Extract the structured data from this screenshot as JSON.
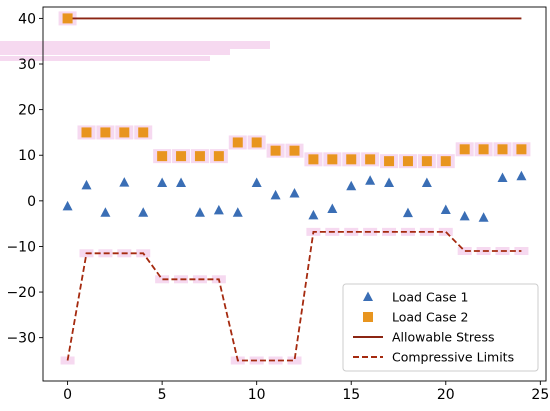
{
  "chart_data": {
    "type": "scatter",
    "title": "",
    "xlabel": "",
    "ylabel": "",
    "xlim": [
      -1.3,
      25.3
    ],
    "ylim": [
      -39.5,
      42.5
    ],
    "grid": false,
    "legend_position": "lower-right",
    "x_ticks": [
      0,
      5,
      10,
      15,
      20,
      25
    ],
    "y_ticks": [
      -30,
      -20,
      -10,
      0,
      10,
      20,
      30,
      40
    ],
    "series": [
      {
        "name": "Load Case 1",
        "kind": "scatter",
        "marker": "triangle",
        "color": "#3a6eb5",
        "x": [
          0,
          1,
          2,
          3,
          4,
          5,
          6,
          7,
          8,
          9,
          10,
          11,
          12,
          13,
          14,
          15,
          16,
          17,
          18,
          19,
          20,
          21,
          22,
          23,
          24
        ],
        "y": [
          -1.2,
          3.4,
          -2.6,
          4.0,
          -2.6,
          3.9,
          3.9,
          -2.6,
          -2.1,
          -2.6,
          3.9,
          1.2,
          1.6,
          -3.2,
          -1.8,
          3.2,
          4.4,
          3.9,
          -2.7,
          3.9,
          -2.0,
          -3.4,
          -3.7,
          5.0,
          5.4
        ]
      },
      {
        "name": "Load Case 2",
        "kind": "scatter",
        "marker": "square",
        "color": "#e8951f",
        "x": [
          0,
          1,
          2,
          3,
          4,
          5,
          6,
          7,
          8,
          9,
          10,
          11,
          12,
          13,
          14,
          15,
          16,
          17,
          18,
          19,
          20,
          21,
          22,
          23,
          24
        ],
        "y": [
          40,
          15,
          15,
          15,
          15,
          9.8,
          9.8,
          9.8,
          9.8,
          12.8,
          12.8,
          11,
          11,
          9.1,
          9.1,
          9.1,
          9.1,
          8.7,
          8.7,
          8.7,
          8.7,
          11.3,
          11.3,
          11.3,
          11.3
        ]
      },
      {
        "name": "Allowable Stress",
        "kind": "line",
        "style": "solid",
        "color": "#8b2513",
        "x": [
          0,
          24
        ],
        "y": [
          40,
          40
        ]
      },
      {
        "name": "Compressive Limits",
        "kind": "line",
        "style": "dashed",
        "color": "#a52a0f",
        "x": [
          0,
          1,
          2,
          3,
          4,
          5,
          6,
          7,
          8,
          9,
          10,
          11,
          12,
          13,
          14,
          15,
          16,
          17,
          18,
          19,
          20,
          21,
          22,
          23,
          24
        ],
        "y": [
          -35,
          -11.5,
          -11.5,
          -11.5,
          -11.5,
          -17.2,
          -17.2,
          -17.2,
          -17.2,
          -35,
          -35,
          -35,
          -35,
          -6.8,
          -6.8,
          -6.8,
          -6.8,
          -6.8,
          -6.8,
          -6.8,
          -6.8,
          -11,
          -11,
          -11,
          -11
        ]
      }
    ]
  }
}
